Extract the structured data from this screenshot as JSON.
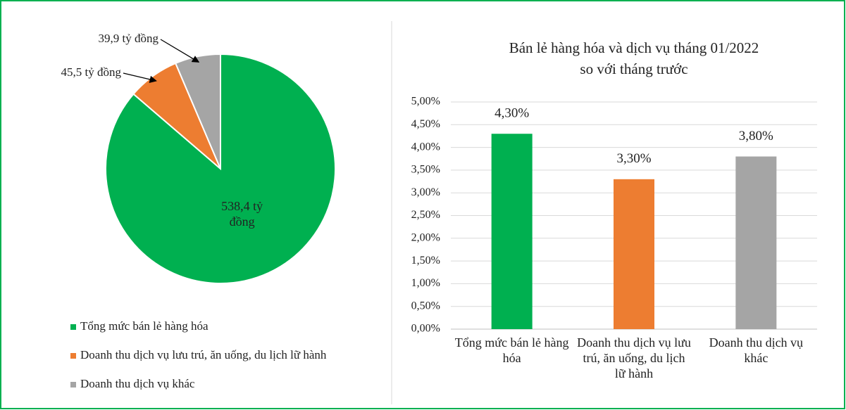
{
  "chart_data": [
    {
      "type": "pie",
      "categories": [
        "Tổng mức bán lẻ hàng hóa",
        "Doanh thu dịch vụ lưu trú, ăn uống, du lịch lữ hành",
        "Doanh thu dịch vụ khác"
      ],
      "values": [
        538.4,
        45.5,
        39.9
      ],
      "value_labels": [
        "538,4 tỷ đồng",
        "45,5 tỷ đồng",
        "39,9 tỷ đồng"
      ],
      "colors": [
        "#00b050",
        "#ed7d31",
        "#a5a5a5"
      ],
      "legend": "bottom"
    },
    {
      "type": "bar",
      "title": [
        "Bán lẻ hàng hóa và dịch vụ tháng 01/2022",
        "so với tháng trước"
      ],
      "categories": [
        "Tổng mức bán lẻ hàng hóa",
        "Doanh thu dịch vụ lưu trú, ăn uống, du lịch lữ hành",
        "Doanh thu dịch vụ khác"
      ],
      "values": [
        4.3,
        3.3,
        3.8
      ],
      "value_labels": [
        "4,30%",
        "3,30%",
        "3,80%"
      ],
      "colors": [
        "#00b050",
        "#ed7d31",
        "#a5a5a5"
      ],
      "ylim": [
        0,
        5
      ],
      "yticks": [
        {
          "value": 0,
          "label": "0,00%"
        },
        {
          "value": 0.5,
          "label": "0,50%"
        },
        {
          "value": 1,
          "label": "1,00%"
        },
        {
          "value": 1.5,
          "label": "1,50%"
        },
        {
          "value": 2,
          "label": "2,00%"
        },
        {
          "value": 2.5,
          "label": "2,50%"
        },
        {
          "value": 3,
          "label": "3,00%"
        },
        {
          "value": 3.5,
          "label": "3,50%"
        },
        {
          "value": 4,
          "label": "4,00%"
        },
        {
          "value": 4.5,
          "label": "4,50%"
        },
        {
          "value": 5,
          "label": "5,00%"
        }
      ],
      "grid": true
    }
  ]
}
